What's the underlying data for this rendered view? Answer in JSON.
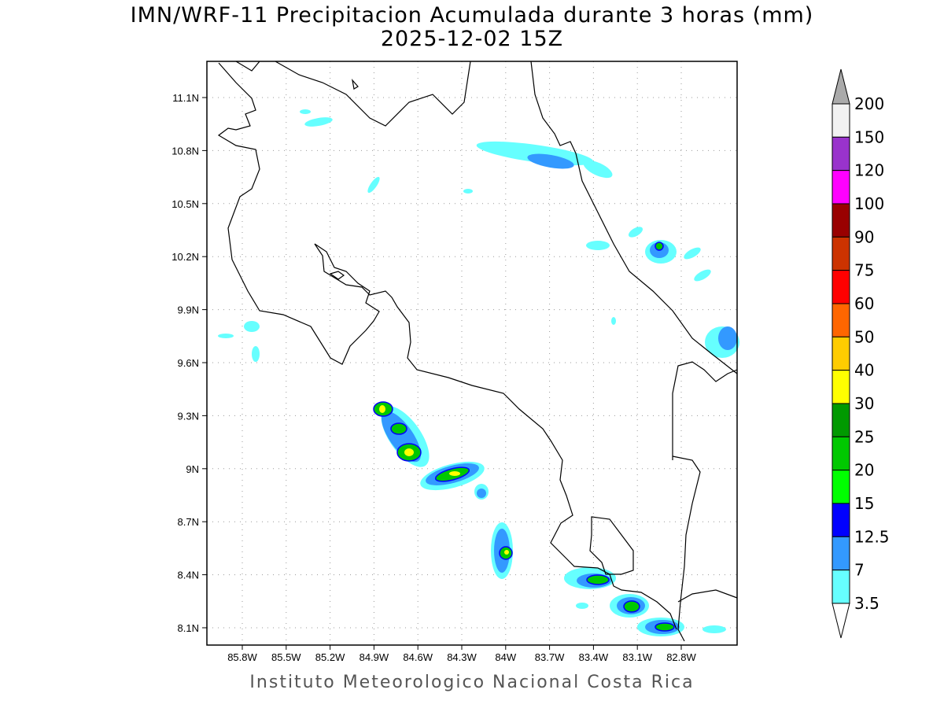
{
  "title": {
    "line1": "IMN/WRF-11 Precipitacion Acumulada durante 3 horas (mm)",
    "line2": "2025-12-02 15Z"
  },
  "footer": "Instituto Meteorologico Nacional Costa Rica",
  "axes": {
    "lon_ticks": [
      "85.8W",
      "85.5W",
      "85.2W",
      "84.9W",
      "84.6W",
      "84.3W",
      "84W",
      "83.7W",
      "83.4W",
      "83.1W",
      "82.8W"
    ],
    "lat_ticks": [
      "11.1N",
      "10.8N",
      "10.5N",
      "10.2N",
      "9.9N",
      "9.6N",
      "9.3N",
      "9N",
      "8.7N",
      "8.4N",
      "8.1N"
    ]
  },
  "legend": {
    "labels": [
      "200",
      "150",
      "120",
      "100",
      "90",
      "75",
      "60",
      "50",
      "40",
      "30",
      "25",
      "20",
      "15",
      "12.5",
      "7",
      "3.5"
    ],
    "colors": [
      "#f2f2f2",
      "#9933cc",
      "#ff00ff",
      "#990000",
      "#cc3300",
      "#ff0000",
      "#ff6600",
      "#ffcc00",
      "#ffff00",
      "#009900",
      "#00c800",
      "#00ff00",
      "#0000ff",
      "#3399ff",
      "#66ffff"
    ],
    "over_color": "#aaaaaa",
    "under_color": "#ffffff"
  }
}
